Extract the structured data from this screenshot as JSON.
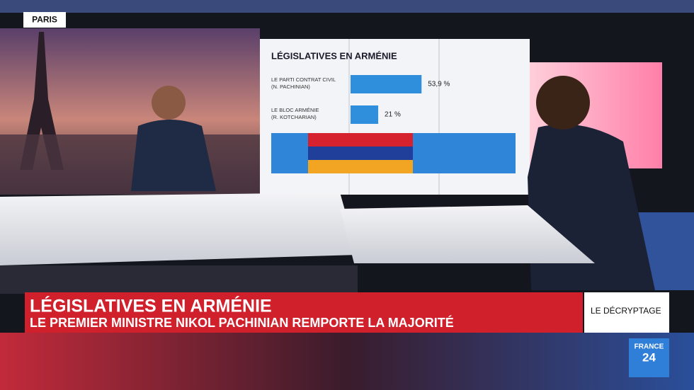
{
  "location": "PARIS",
  "screen": {
    "title": "LÉGISLATIVES EN ARMÉNIE",
    "rows": [
      {
        "label": [
          "LE PARTI CONTRAT CIVIL",
          "(N. PACHINIAN)"
        ],
        "value": 53.9,
        "value_label": "53,9 %"
      },
      {
        "label": [
          "LE BLOC ARMÉNIE",
          "(R. KOTCHARIAN)"
        ],
        "value": 21,
        "value_label": "21 %"
      }
    ]
  },
  "lower_third": {
    "headline": "LÉGISLATIVES EN ARMÉNIE",
    "subheadline": "LE PREMIER MINISTRE NIKOL PACHINIAN REMPORTE LA MAJORITÉ",
    "tag": "LE DÉCRYPTAGE"
  },
  "logo": {
    "line1": "FRANCE",
    "line2": "24"
  }
}
